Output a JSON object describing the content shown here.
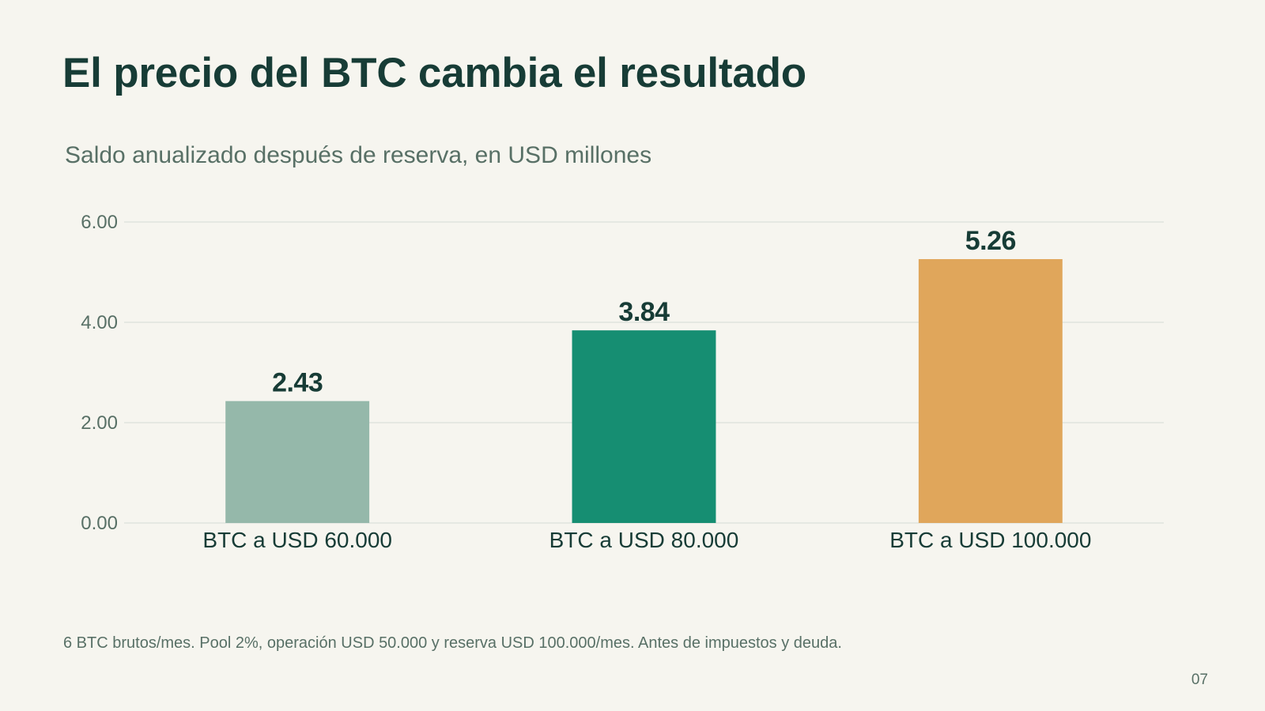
{
  "slide": {
    "title": "El precio del BTC cambia el resultado",
    "subtitle": "Saldo anualizado después de reserva, en USD millones",
    "footnote": "6 BTC brutos/mes. Pool 2%, operación USD 50.000 y reserva USD 100.000/mes. Antes de impuestos y deuda.",
    "page_number": "07"
  },
  "colors": {
    "background": "#f6f5ef",
    "title": "#173c36",
    "muted_text": "#587066",
    "gridline": "#d4dbd5",
    "bar_colors": [
      "#95b8aa",
      "#168e72",
      "#e0a65b"
    ]
  },
  "chart_data": {
    "type": "bar",
    "title": "",
    "xlabel": "",
    "ylabel": "",
    "categories": [
      "BTC a USD 60.000",
      "BTC a USD 80.000",
      "BTC a USD 100.000"
    ],
    "values": [
      2.43,
      3.84,
      5.26
    ],
    "data_labels": [
      "2.43",
      "3.84",
      "5.26"
    ],
    "ylim": [
      0,
      6
    ],
    "yticks": [
      "0.00",
      "2.00",
      "4.00",
      "6.00"
    ],
    "ytick_values": [
      0,
      2,
      4,
      6
    ],
    "grid": true,
    "legend": "none"
  }
}
